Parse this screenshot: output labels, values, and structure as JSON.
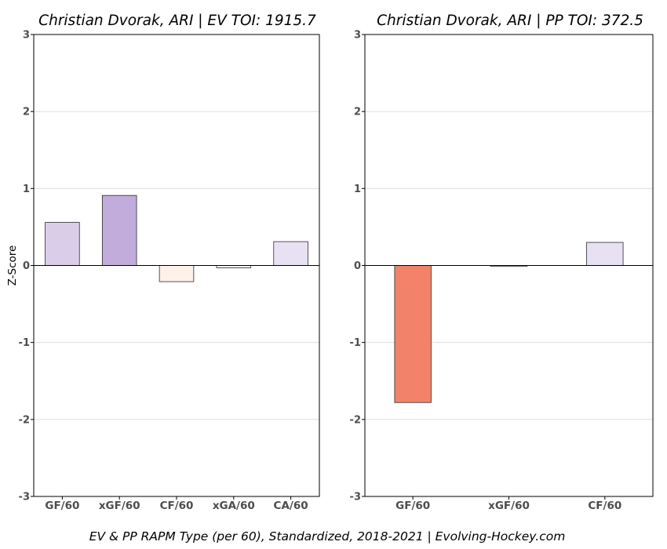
{
  "caption": "EV & PP RAPM Type (per 60), Standardized, 2018-2021    |    Evolving-Hockey.com",
  "chart_data": [
    {
      "type": "bar",
      "title": "Christian Dvorak, ARI  |  EV TOI: 1915.7",
      "ylabel": "Z-Score",
      "xlabel": "",
      "ylim": [
        -3,
        3
      ],
      "yticks": [
        -3,
        -2,
        -1,
        0,
        1,
        2,
        3
      ],
      "ytick_labels": [
        "-3",
        "-2",
        "-1",
        "0",
        "1",
        "2",
        "3"
      ],
      "grid": "horizontal",
      "categories": [
        "GF/60",
        "xGF/60",
        "CF/60",
        "xGA/60",
        "CA/60"
      ],
      "values": [
        0.56,
        0.91,
        -0.21,
        -0.03,
        0.31
      ],
      "colors": [
        "#dacde9",
        "#c1acdc",
        "#fef1ea",
        "#fdfaf8",
        "#e8e0f3"
      ]
    },
    {
      "type": "bar",
      "title": "Christian Dvorak, ARI  |  PP TOI: 372.5",
      "ylabel": "",
      "xlabel": "",
      "ylim": [
        -3,
        3
      ],
      "yticks": [
        -3,
        -2,
        -1,
        0,
        1,
        2,
        3
      ],
      "ytick_labels": [
        "-3",
        "-2",
        "-1",
        "0",
        "1",
        "2",
        "3"
      ],
      "grid": "horizontal",
      "categories": [
        "GF/60",
        "xGF/60",
        "CF/60"
      ],
      "values": [
        -1.78,
        -0.01,
        0.3
      ],
      "colors": [
        "#f2826a",
        "#fdfbf9",
        "#e8e0f3"
      ]
    }
  ]
}
